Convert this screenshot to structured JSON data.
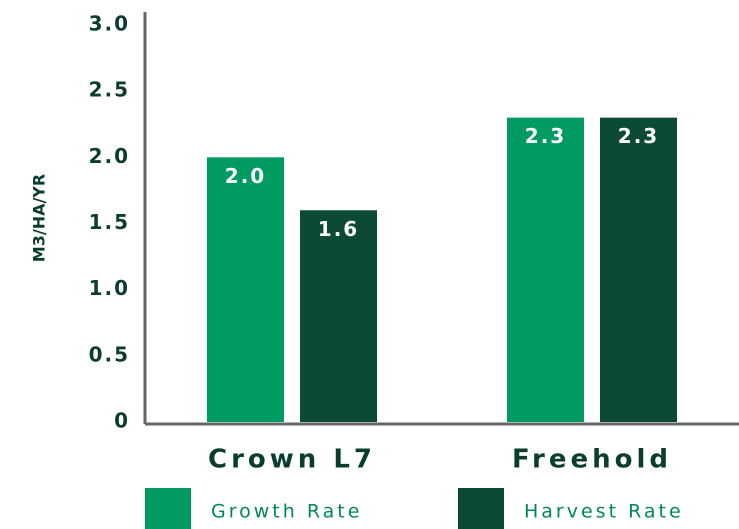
{
  "chart_data": {
    "type": "bar",
    "y_label": "M3/HA/YR",
    "categories": [
      "Crown L7",
      "Freehold"
    ],
    "series": [
      {
        "name": "Growth Rate",
        "color": "#009a63",
        "values": [
          2.0,
          2.3
        ],
        "value_labels": [
          "2.0",
          "2.3"
        ]
      },
      {
        "name": "Harvest Rate",
        "color": "#0c4a36",
        "values": [
          1.6,
          2.3
        ],
        "value_labels": [
          "1.6",
          "2.3"
        ]
      }
    ],
    "ylim": [
      0,
      3
    ],
    "yticks": [
      0,
      0.5,
      {
        "value": 1,
        "label": "1.0"
      },
      1.5,
      {
        "value": 2,
        "label": "2.0"
      },
      2.5,
      {
        "value": 3,
        "label": "3.0"
      }
    ]
  }
}
